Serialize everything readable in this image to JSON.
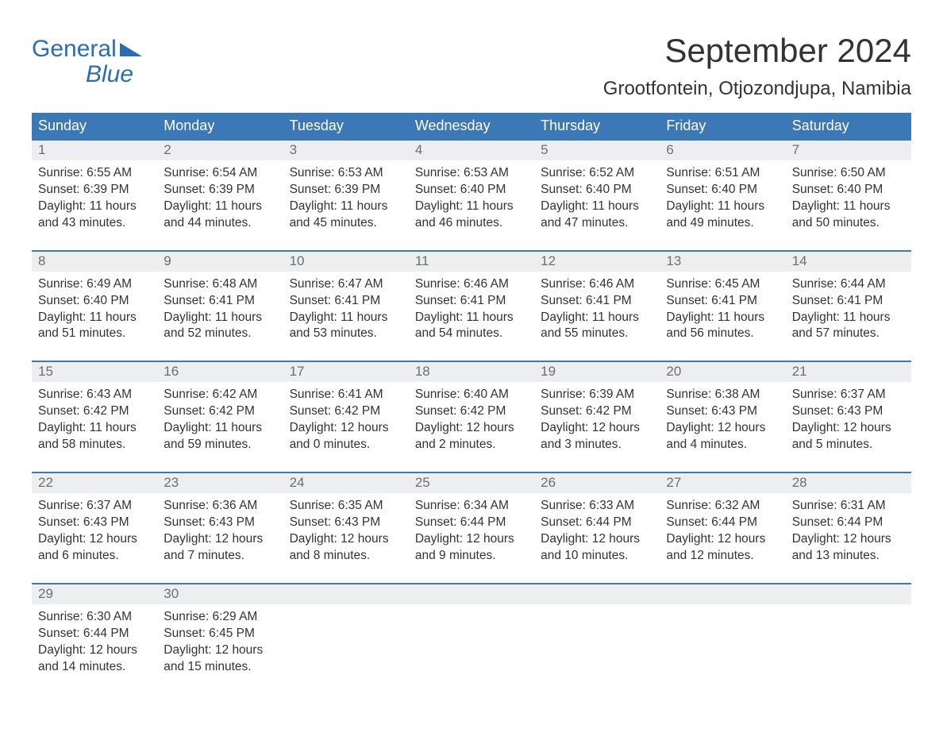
{
  "logo": {
    "line1": "General",
    "line2": "Blue",
    "brand_color": "#2a6db0"
  },
  "title": "September 2024",
  "location": "Grootfontein, Otjozondjupa, Namibia",
  "colors": {
    "header_bg": "#3b78b5",
    "header_fg": "#ffffff",
    "daynum_bg": "#eceeef",
    "daynum_fg": "#6a6f73",
    "body_fg": "#333333",
    "row_border": "#3b78b5",
    "page_bg": "#ffffff"
  },
  "typography": {
    "month_title_fontsize": 42,
    "location_fontsize": 24,
    "header_fontsize": 18,
    "daynum_fontsize": 17,
    "body_fontsize": 15.5,
    "logo_fontsize": 30
  },
  "day_labels": [
    "Sunday",
    "Monday",
    "Tuesday",
    "Wednesday",
    "Thursday",
    "Friday",
    "Saturday"
  ],
  "weeks": [
    [
      {
        "n": "1",
        "sunrise": "Sunrise: 6:55 AM",
        "sunset": "Sunset: 6:39 PM",
        "d1": "Daylight: 11 hours",
        "d2": "and 43 minutes."
      },
      {
        "n": "2",
        "sunrise": "Sunrise: 6:54 AM",
        "sunset": "Sunset: 6:39 PM",
        "d1": "Daylight: 11 hours",
        "d2": "and 44 minutes."
      },
      {
        "n": "3",
        "sunrise": "Sunrise: 6:53 AM",
        "sunset": "Sunset: 6:39 PM",
        "d1": "Daylight: 11 hours",
        "d2": "and 45 minutes."
      },
      {
        "n": "4",
        "sunrise": "Sunrise: 6:53 AM",
        "sunset": "Sunset: 6:40 PM",
        "d1": "Daylight: 11 hours",
        "d2": "and 46 minutes."
      },
      {
        "n": "5",
        "sunrise": "Sunrise: 6:52 AM",
        "sunset": "Sunset: 6:40 PM",
        "d1": "Daylight: 11 hours",
        "d2": "and 47 minutes."
      },
      {
        "n": "6",
        "sunrise": "Sunrise: 6:51 AM",
        "sunset": "Sunset: 6:40 PM",
        "d1": "Daylight: 11 hours",
        "d2": "and 49 minutes."
      },
      {
        "n": "7",
        "sunrise": "Sunrise: 6:50 AM",
        "sunset": "Sunset: 6:40 PM",
        "d1": "Daylight: 11 hours",
        "d2": "and 50 minutes."
      }
    ],
    [
      {
        "n": "8",
        "sunrise": "Sunrise: 6:49 AM",
        "sunset": "Sunset: 6:40 PM",
        "d1": "Daylight: 11 hours",
        "d2": "and 51 minutes."
      },
      {
        "n": "9",
        "sunrise": "Sunrise: 6:48 AM",
        "sunset": "Sunset: 6:41 PM",
        "d1": "Daylight: 11 hours",
        "d2": "and 52 minutes."
      },
      {
        "n": "10",
        "sunrise": "Sunrise: 6:47 AM",
        "sunset": "Sunset: 6:41 PM",
        "d1": "Daylight: 11 hours",
        "d2": "and 53 minutes."
      },
      {
        "n": "11",
        "sunrise": "Sunrise: 6:46 AM",
        "sunset": "Sunset: 6:41 PM",
        "d1": "Daylight: 11 hours",
        "d2": "and 54 minutes."
      },
      {
        "n": "12",
        "sunrise": "Sunrise: 6:46 AM",
        "sunset": "Sunset: 6:41 PM",
        "d1": "Daylight: 11 hours",
        "d2": "and 55 minutes."
      },
      {
        "n": "13",
        "sunrise": "Sunrise: 6:45 AM",
        "sunset": "Sunset: 6:41 PM",
        "d1": "Daylight: 11 hours",
        "d2": "and 56 minutes."
      },
      {
        "n": "14",
        "sunrise": "Sunrise: 6:44 AM",
        "sunset": "Sunset: 6:41 PM",
        "d1": "Daylight: 11 hours",
        "d2": "and 57 minutes."
      }
    ],
    [
      {
        "n": "15",
        "sunrise": "Sunrise: 6:43 AM",
        "sunset": "Sunset: 6:42 PM",
        "d1": "Daylight: 11 hours",
        "d2": "and 58 minutes."
      },
      {
        "n": "16",
        "sunrise": "Sunrise: 6:42 AM",
        "sunset": "Sunset: 6:42 PM",
        "d1": "Daylight: 11 hours",
        "d2": "and 59 minutes."
      },
      {
        "n": "17",
        "sunrise": "Sunrise: 6:41 AM",
        "sunset": "Sunset: 6:42 PM",
        "d1": "Daylight: 12 hours",
        "d2": "and 0 minutes."
      },
      {
        "n": "18",
        "sunrise": "Sunrise: 6:40 AM",
        "sunset": "Sunset: 6:42 PM",
        "d1": "Daylight: 12 hours",
        "d2": "and 2 minutes."
      },
      {
        "n": "19",
        "sunrise": "Sunrise: 6:39 AM",
        "sunset": "Sunset: 6:42 PM",
        "d1": "Daylight: 12 hours",
        "d2": "and 3 minutes."
      },
      {
        "n": "20",
        "sunrise": "Sunrise: 6:38 AM",
        "sunset": "Sunset: 6:43 PM",
        "d1": "Daylight: 12 hours",
        "d2": "and 4 minutes."
      },
      {
        "n": "21",
        "sunrise": "Sunrise: 6:37 AM",
        "sunset": "Sunset: 6:43 PM",
        "d1": "Daylight: 12 hours",
        "d2": "and 5 minutes."
      }
    ],
    [
      {
        "n": "22",
        "sunrise": "Sunrise: 6:37 AM",
        "sunset": "Sunset: 6:43 PM",
        "d1": "Daylight: 12 hours",
        "d2": "and 6 minutes."
      },
      {
        "n": "23",
        "sunrise": "Sunrise: 6:36 AM",
        "sunset": "Sunset: 6:43 PM",
        "d1": "Daylight: 12 hours",
        "d2": "and 7 minutes."
      },
      {
        "n": "24",
        "sunrise": "Sunrise: 6:35 AM",
        "sunset": "Sunset: 6:43 PM",
        "d1": "Daylight: 12 hours",
        "d2": "and 8 minutes."
      },
      {
        "n": "25",
        "sunrise": "Sunrise: 6:34 AM",
        "sunset": "Sunset: 6:44 PM",
        "d1": "Daylight: 12 hours",
        "d2": "and 9 minutes."
      },
      {
        "n": "26",
        "sunrise": "Sunrise: 6:33 AM",
        "sunset": "Sunset: 6:44 PM",
        "d1": "Daylight: 12 hours",
        "d2": "and 10 minutes."
      },
      {
        "n": "27",
        "sunrise": "Sunrise: 6:32 AM",
        "sunset": "Sunset: 6:44 PM",
        "d1": "Daylight: 12 hours",
        "d2": "and 12 minutes."
      },
      {
        "n": "28",
        "sunrise": "Sunrise: 6:31 AM",
        "sunset": "Sunset: 6:44 PM",
        "d1": "Daylight: 12 hours",
        "d2": "and 13 minutes."
      }
    ],
    [
      {
        "n": "29",
        "sunrise": "Sunrise: 6:30 AM",
        "sunset": "Sunset: 6:44 PM",
        "d1": "Daylight: 12 hours",
        "d2": "and 14 minutes."
      },
      {
        "n": "30",
        "sunrise": "Sunrise: 6:29 AM",
        "sunset": "Sunset: 6:45 PM",
        "d1": "Daylight: 12 hours",
        "d2": "and 15 minutes."
      },
      {
        "empty": true
      },
      {
        "empty": true
      },
      {
        "empty": true
      },
      {
        "empty": true
      },
      {
        "empty": true
      }
    ]
  ]
}
